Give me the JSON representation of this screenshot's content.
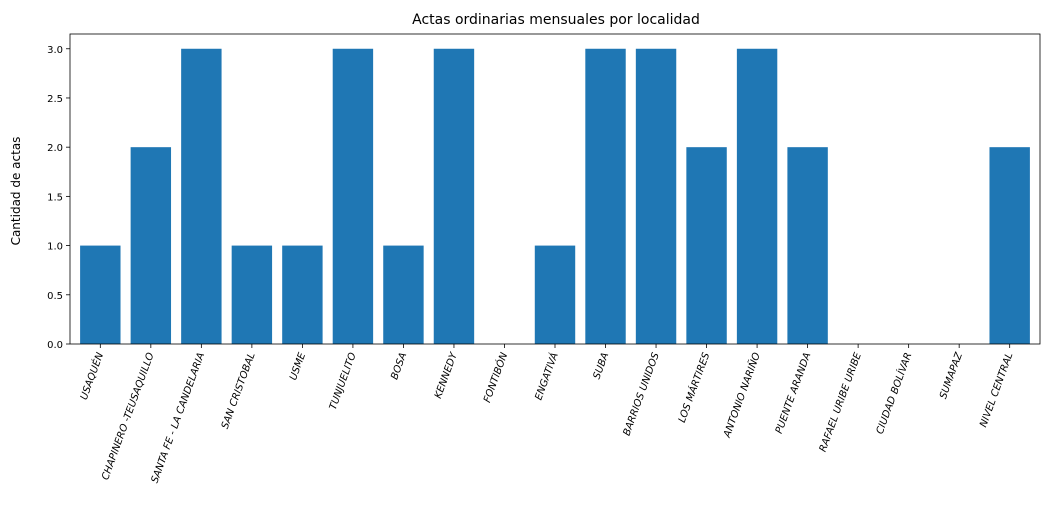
{
  "chart_data": {
    "type": "bar",
    "title": "Actas ordinarias mensuales por localidad",
    "xlabel": "",
    "ylabel": "Cantidad de actas",
    "ylim": [
      0,
      3.15
    ],
    "yticks": [
      "0.0",
      "0.5",
      "1.0",
      "1.5",
      "2.0",
      "2.5",
      "3.0"
    ],
    "categories": [
      "USAQUÉN",
      "CHAPINERO -TEUSAQUILLO",
      "SANTA FE - LA CANDELARIA",
      "SAN CRISTOBAL",
      "USME",
      "TUNJUELITO",
      "BOSA",
      "KENNEDY",
      "FONTIBÓN",
      "ENGATIVÁ",
      "SUBA",
      "BARRIOS UNIDOS",
      "LOS MÁRTIRES",
      "ANTONIO NARIÑO",
      "PUENTE ARANDA",
      "RAFAEL URIBE URIBE",
      "CIUDAD BOLÍVAR",
      "SUMAPAZ",
      "NIVEL CENTRAL"
    ],
    "values": [
      1,
      2,
      3,
      1,
      1,
      3,
      1,
      3,
      0,
      1,
      3,
      3,
      2,
      3,
      2,
      0,
      0,
      0,
      2
    ],
    "bar_color": "#1f77b4",
    "grid": false,
    "legend": "none"
  }
}
